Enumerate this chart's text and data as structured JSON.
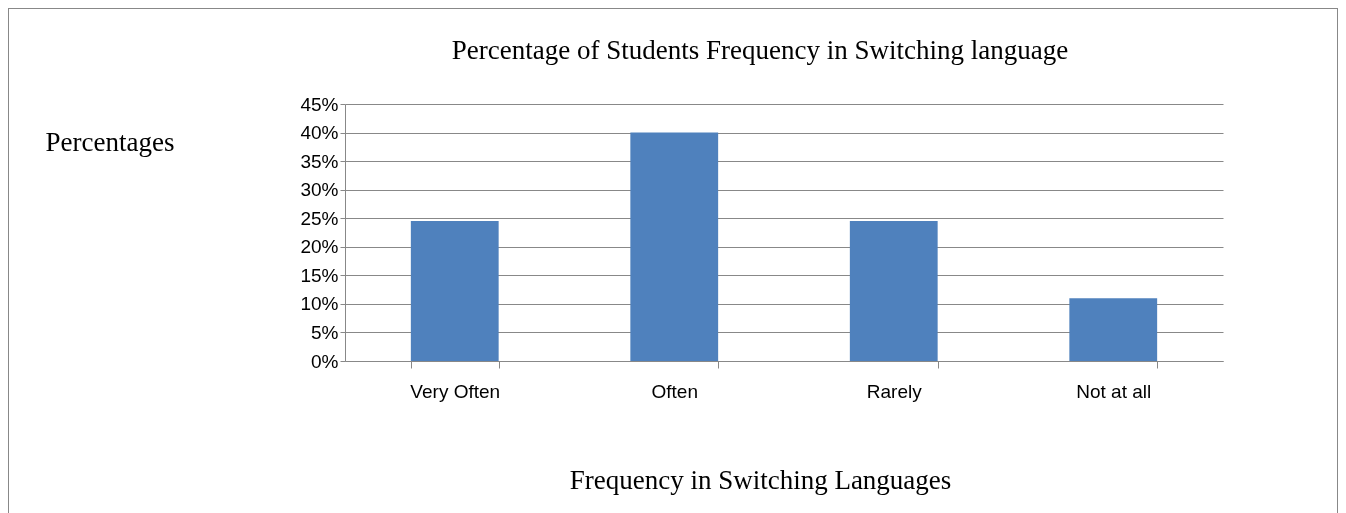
{
  "chart_data": {
    "type": "bar",
    "title": "Percentage of Students Frequency in Switching language",
    "xlabel": "Frequency  in Switching Languages",
    "ylabel": "Percentages",
    "categories": [
      "Very Often",
      "Often",
      "Rarely",
      "Not at all"
    ],
    "values": [
      24.5,
      40,
      24.5,
      11
    ],
    "color": "#4f81bd",
    "ylim": [
      0,
      45
    ],
    "yticks": [
      {
        "value": 0,
        "label": "0%"
      },
      {
        "value": 5,
        "label": "5%"
      },
      {
        "value": 10,
        "label": "10%"
      },
      {
        "value": 15,
        "label": "15%"
      },
      {
        "value": 20,
        "label": "20%"
      },
      {
        "value": 25,
        "label": "25%"
      },
      {
        "value": 30,
        "label": "30%"
      },
      {
        "value": 35,
        "label": "35%"
      },
      {
        "value": 40,
        "label": "40%"
      },
      {
        "value": 45,
        "label": "45%"
      }
    ],
    "grid": "y"
  }
}
